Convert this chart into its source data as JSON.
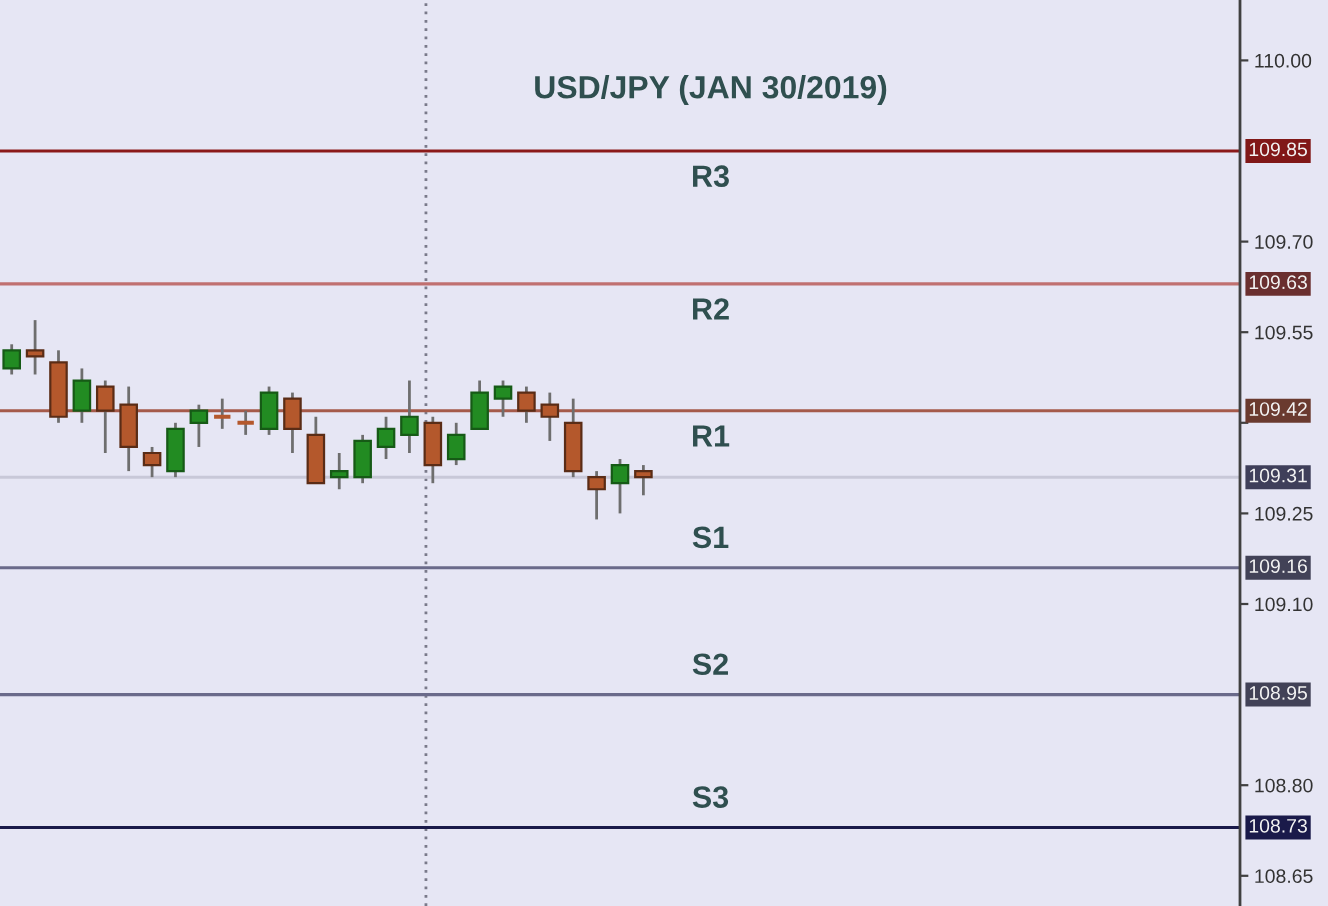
{
  "chart_data": {
    "type": "candlestick",
    "title": "USD/JPY (JAN 30/2019)",
    "categories": [
      null,
      null,
      null,
      null,
      null,
      null,
      null,
      null,
      null,
      null,
      null,
      null,
      null,
      null,
      null,
      null,
      null,
      null,
      null,
      null,
      null,
      null,
      null,
      null,
      null,
      null,
      null,
      null,
      null,
      null,
      null,
      null,
      null,
      null,
      null,
      null,
      null,
      null,
      null,
      null,
      null,
      null,
      null,
      null,
      null,
      null,
      null,
      null,
      null,
      null,
      null,
      null,
      null
    ],
    "ohlc": [
      [
        109.49,
        109.53,
        109.48,
        109.52
      ],
      [
        109.52,
        109.57,
        109.48,
        109.51
      ],
      [
        109.5,
        109.52,
        109.4,
        109.41
      ],
      [
        109.42,
        109.49,
        109.4,
        109.47
      ],
      [
        109.46,
        109.47,
        109.35,
        109.42
      ],
      [
        109.43,
        109.46,
        109.32,
        109.36
      ],
      [
        109.35,
        109.36,
        109.31,
        109.33
      ],
      [
        109.32,
        109.4,
        109.31,
        109.39
      ],
      [
        109.4,
        109.43,
        109.36,
        109.42
      ],
      [
        109.41,
        109.44,
        109.39,
        109.41
      ],
      [
        109.4,
        109.42,
        109.38,
        109.4
      ],
      [
        109.39,
        109.46,
        109.38,
        109.45
      ],
      [
        109.44,
        109.45,
        109.35,
        109.39
      ],
      [
        109.38,
        109.41,
        109.3,
        109.3
      ],
      [
        109.31,
        109.35,
        109.29,
        109.32
      ],
      [
        109.31,
        109.38,
        109.3,
        109.37
      ],
      [
        109.36,
        109.41,
        109.34,
        109.39
      ],
      [
        109.38,
        109.47,
        109.35,
        109.41
      ],
      [
        109.4,
        109.41,
        109.3,
        109.33
      ],
      [
        109.34,
        109.4,
        109.33,
        109.38
      ],
      [
        109.39,
        109.47,
        109.39,
        109.45
      ],
      [
        109.44,
        109.47,
        109.41,
        109.46
      ],
      [
        109.45,
        109.46,
        109.4,
        109.42
      ],
      [
        109.43,
        109.45,
        109.37,
        109.41
      ],
      [
        109.4,
        109.44,
        109.31,
        109.32
      ],
      [
        109.31,
        109.32,
        109.24,
        109.29
      ],
      [
        109.3,
        109.34,
        109.25,
        109.33
      ],
      [
        109.32,
        109.33,
        109.28,
        109.31
      ],
      null,
      null,
      null,
      null,
      null,
      null,
      null,
      null,
      null,
      null,
      null,
      null,
      null,
      null,
      null,
      null,
      null,
      null,
      null,
      null,
      null,
      null,
      null,
      null,
      null
    ],
    "colors": [
      "#228b22",
      "#b4582c",
      "#b4582c",
      "#228b22",
      "#b4582c",
      "#b4582c",
      "#b4582c",
      "#228b22",
      "#228b22",
      "#b4582c",
      "#b4582c",
      "#228b22",
      "#b4582c",
      "#b4582c",
      "#228b22",
      "#228b22",
      "#228b22",
      "#228b22",
      "#b4582c",
      "#228b22",
      "#228b22",
      "#228b22",
      "#b4582c",
      "#b4582c",
      "#b4582c",
      "#b4582c",
      "#228b22",
      "#b4582c",
      null,
      null,
      null,
      null,
      null,
      null,
      null,
      null,
      null,
      null,
      null,
      null,
      null,
      null,
      null,
      null,
      null,
      null,
      null,
      null,
      null,
      null,
      null,
      null,
      null
    ],
    "ylim": [
      108.6,
      110.1
    ],
    "yticks": [
      108.65,
      {
        "value": 108.8,
        "label": "108.80"
      },
      {
        "value": 109.1,
        "label": "109.10"
      },
      109.25,
      {
        "value": 109.4,
        "label": null
      },
      109.55,
      {
        "value": 109.7,
        "label": "109.70"
      },
      {
        "value": 110,
        "label": "110.00"
      }
    ],
    "tick_labels": "y",
    "ref_lines": [
      {
        "axis": "y",
        "value": 109.85,
        "label": "109.85",
        "color": "#8b1a1a"
      },
      {
        "axis": "y",
        "value": 109.63,
        "label": "109.63",
        "color": "#c07070"
      },
      {
        "axis": "y",
        "value": 109.42,
        "label": "109.42",
        "color": "#a55a4a"
      },
      {
        "axis": "y",
        "value": 109.31,
        "label": "109.31",
        "color": "#c8c8d8"
      },
      {
        "axis": "y",
        "value": 109.16,
        "label": "109.16",
        "color": "#6a6a8a"
      },
      {
        "axis": "y",
        "value": 108.95,
        "label": "108.95",
        "color": "#6a6a8a"
      },
      {
        "axis": "y",
        "value": 108.73,
        "label": "108.73",
        "color": "#1a1a4a"
      }
    ],
    "annotations": [
      {
        "text": "R3",
        "y": 109.85
      },
      {
        "text": "R2",
        "y": 109.63
      },
      {
        "text": "R1",
        "y": 109.42
      },
      {
        "text": "S1",
        "y": 109.16
      },
      {
        "text": "S2",
        "y": 108.95
      },
      {
        "text": "S3",
        "y": 108.73
      }
    ]
  }
}
